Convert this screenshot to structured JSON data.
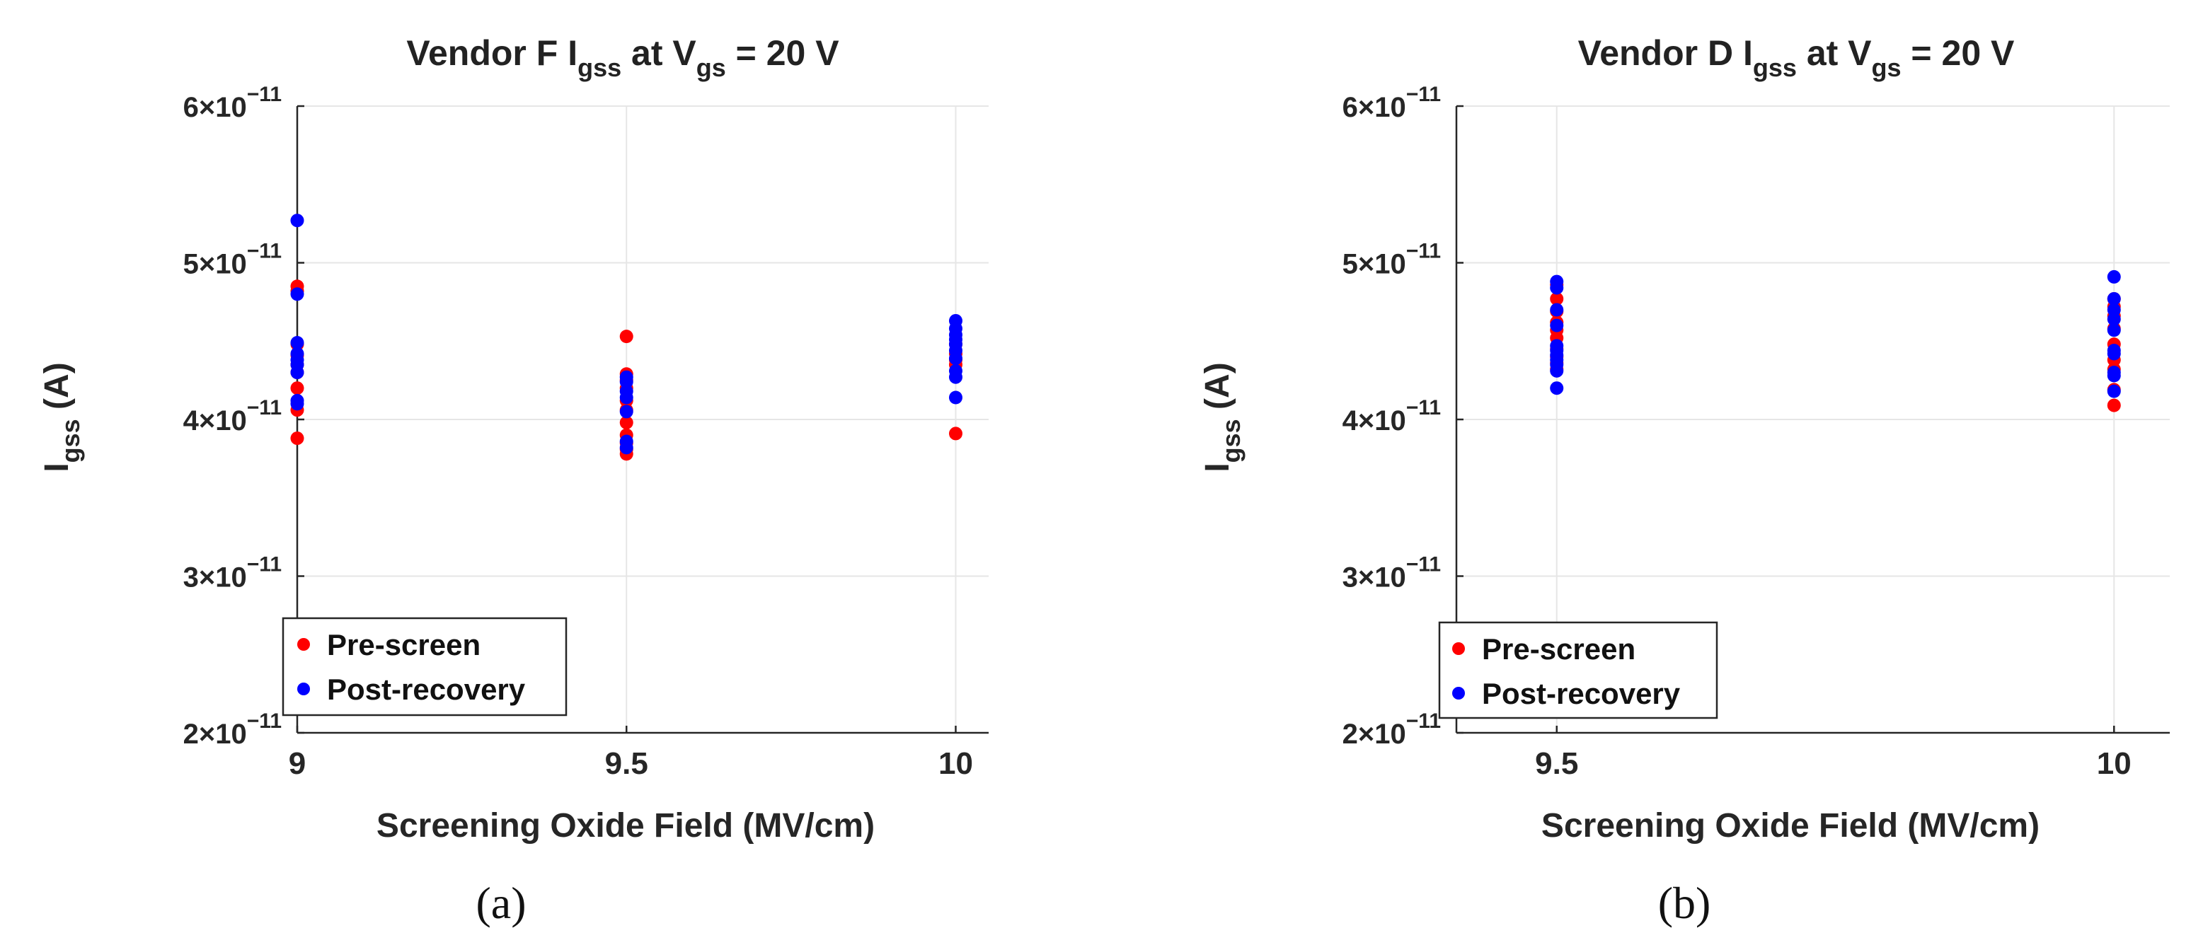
{
  "colors": {
    "pre": "#ff0000",
    "post": "#0000ff",
    "axis": "#262626",
    "grid": "#e6e6e6"
  },
  "legend": {
    "pre_label": "Pre-screen",
    "post_label": "Post-recovery"
  },
  "chart_data": [
    {
      "type": "scatter",
      "id": "a",
      "caption": "(a)",
      "title": {
        "prefix": "Vendor F I",
        "sub1": "gss",
        "mid": " at V",
        "sub2": "gs",
        "suffix": " = 20 V"
      },
      "xlabel": "Screening Oxide Field (MV/cm)",
      "ylabel": {
        "main": "I",
        "sub": "gss",
        "unit": " (A)"
      },
      "xlim": [
        9,
        10.05
      ],
      "ylim": [
        2e-11,
        6e-11
      ],
      "xticks": [
        9,
        9.5,
        10
      ],
      "xtick_labels": [
        "9",
        "9.5",
        "10"
      ],
      "yticks": [
        2e-11,
        3e-11,
        4e-11,
        5e-11,
        6e-11
      ],
      "ytick_labels": [
        {
          "mant": "2",
          "exp": "−11"
        },
        {
          "mant": "3",
          "exp": "−11"
        },
        {
          "mant": "4",
          "exp": "−11"
        },
        {
          "mant": "5",
          "exp": "−11"
        },
        {
          "mant": "6",
          "exp": "−11"
        }
      ],
      "legend_position": "bottom-left",
      "series": [
        {
          "name": "Pre-screen",
          "points": [
            [
              9,
              3.88e-11
            ],
            [
              9,
              4.06e-11
            ],
            [
              9,
              4.2e-11
            ],
            [
              9,
              4.3e-11
            ],
            [
              9,
              4.35e-11
            ],
            [
              9,
              4.41e-11
            ],
            [
              9,
              4.48e-11
            ],
            [
              9,
              4.82e-11
            ],
            [
              9,
              4.85e-11
            ],
            [
              9.5,
              3.78e-11
            ],
            [
              9.5,
              3.81e-11
            ],
            [
              9.5,
              3.85e-11
            ],
            [
              9.5,
              3.9e-11
            ],
            [
              9.5,
              3.98e-11
            ],
            [
              9.5,
              4.06e-11
            ],
            [
              9.5,
              4.12e-11
            ],
            [
              9.5,
              4.2e-11
            ],
            [
              9.5,
              4.25e-11
            ],
            [
              9.5,
              4.29e-11
            ],
            [
              9.5,
              4.53e-11
            ],
            [
              10,
              3.91e-11
            ],
            [
              10,
              4.35e-11
            ],
            [
              10,
              4.38e-11
            ],
            [
              10,
              4.42e-11
            ],
            [
              10,
              4.48e-11
            ]
          ]
        },
        {
          "name": "Post-recovery",
          "points": [
            [
              9,
              4.1e-11
            ],
            [
              9,
              4.12e-11
            ],
            [
              9,
              4.3e-11
            ],
            [
              9,
              4.35e-11
            ],
            [
              9,
              4.38e-11
            ],
            [
              9,
              4.42e-11
            ],
            [
              9,
              4.49e-11
            ],
            [
              9,
              4.8e-11
            ],
            [
              9,
              5.27e-11
            ],
            [
              9.5,
              3.82e-11
            ],
            [
              9.5,
              3.86e-11
            ],
            [
              9.5,
              4.05e-11
            ],
            [
              9.5,
              4.14e-11
            ],
            [
              9.5,
              4.18e-11
            ],
            [
              9.5,
              4.24e-11
            ],
            [
              9.5,
              4.27e-11
            ],
            [
              10,
              4.14e-11
            ],
            [
              10,
              4.27e-11
            ],
            [
              10,
              4.31e-11
            ],
            [
              10,
              4.39e-11
            ],
            [
              10,
              4.44e-11
            ],
            [
              10,
              4.48e-11
            ],
            [
              10,
              4.51e-11
            ],
            [
              10,
              4.54e-11
            ],
            [
              10,
              4.58e-11
            ],
            [
              10,
              4.63e-11
            ]
          ]
        }
      ]
    },
    {
      "type": "scatter",
      "id": "b",
      "caption": "(b)",
      "title": {
        "prefix": "Vendor D I",
        "sub1": "gss",
        "mid": " at V",
        "sub2": "gs",
        "suffix": " = 20 V"
      },
      "xlabel": "Screening Oxide Field (MV/cm)",
      "ylabel": {
        "main": "I",
        "sub": "gss",
        "unit": " (A)"
      },
      "xlim": [
        9.41,
        10.05
      ],
      "ylim": [
        2e-11,
        6e-11
      ],
      "xticks": [
        9.5,
        10
      ],
      "xtick_labels": [
        "9.5",
        "10"
      ],
      "yticks": [
        2e-11,
        3e-11,
        4e-11,
        5e-11,
        6e-11
      ],
      "ytick_labels": [
        {
          "mant": "2",
          "exp": "−11"
        },
        {
          "mant": "3",
          "exp": "−11"
        },
        {
          "mant": "4",
          "exp": "−11"
        },
        {
          "mant": "5",
          "exp": "−11"
        },
        {
          "mant": "6",
          "exp": "−11"
        }
      ],
      "legend_position": "bottom-left",
      "series": [
        {
          "name": "Pre-screen",
          "points": [
            [
              9.5,
              4.32e-11
            ],
            [
              9.5,
              4.36e-11
            ],
            [
              9.5,
              4.4e-11
            ],
            [
              9.5,
              4.45e-11
            ],
            [
              9.5,
              4.52e-11
            ],
            [
              9.5,
              4.57e-11
            ],
            [
              9.5,
              4.62e-11
            ],
            [
              9.5,
              4.69e-11
            ],
            [
              9.5,
              4.77e-11
            ],
            [
              9.5,
              4.86e-11
            ],
            [
              10,
              4.09e-11
            ],
            [
              10,
              4.19e-11
            ],
            [
              10,
              4.32e-11
            ],
            [
              10,
              4.38e-11
            ],
            [
              10,
              4.48e-11
            ],
            [
              10,
              4.58e-11
            ],
            [
              10,
              4.66e-11
            ],
            [
              10,
              4.72e-11
            ],
            [
              10,
              4.77e-11
            ]
          ]
        },
        {
          "name": "Post-recovery",
          "points": [
            [
              9.5,
              4.2e-11
            ],
            [
              9.5,
              4.31e-11
            ],
            [
              9.5,
              4.35e-11
            ],
            [
              9.5,
              4.38e-11
            ],
            [
              9.5,
              4.41e-11
            ],
            [
              9.5,
              4.44e-11
            ],
            [
              9.5,
              4.47e-11
            ],
            [
              9.5,
              4.6e-11
            ],
            [
              9.5,
              4.7e-11
            ],
            [
              9.5,
              4.84e-11
            ],
            [
              9.5,
              4.88e-11
            ],
            [
              10,
              4.18e-11
            ],
            [
              10,
              4.28e-11
            ],
            [
              10,
              4.3e-11
            ],
            [
              10,
              4.42e-11
            ],
            [
              10,
              4.44e-11
            ],
            [
              10,
              4.57e-11
            ],
            [
              10,
              4.64e-11
            ],
            [
              10,
              4.7e-11
            ],
            [
              10,
              4.77e-11
            ],
            [
              10,
              4.91e-11
            ]
          ]
        }
      ]
    }
  ]
}
